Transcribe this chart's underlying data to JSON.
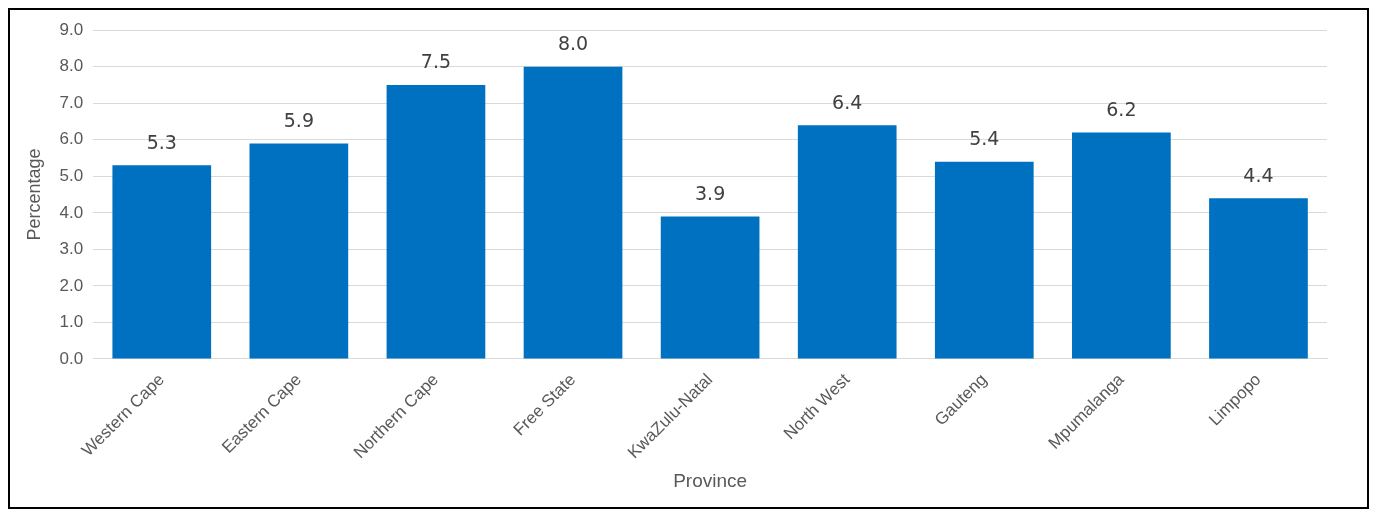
{
  "chart_data": {
    "type": "bar",
    "xlabel": "Province",
    "ylabel": "Percentage",
    "categories": [
      "Western Cape",
      "Eastern Cape",
      "Northern Cape",
      "Free State",
      "KwaZulu-Natal",
      "North West",
      "Gauteng",
      "Mpumalanga",
      "Limpopo"
    ],
    "values": [
      5.3,
      5.9,
      7.5,
      8.0,
      3.9,
      6.4,
      5.4,
      6.2,
      4.4
    ],
    "color": "#0070c0",
    "ylim": [
      0,
      9
    ],
    "yticks": [
      {
        "value": 0,
        "label": "0.0"
      },
      {
        "value": 1,
        "label": "1.0"
      },
      {
        "value": 2,
        "label": "2.0"
      },
      {
        "value": 3,
        "label": "3.0"
      },
      {
        "value": 4,
        "label": "4.0"
      },
      {
        "value": 5,
        "label": "5.0"
      },
      {
        "value": 6,
        "label": "6.0"
      },
      {
        "value": 7,
        "label": "7.0"
      },
      {
        "value": 8,
        "label": "8.0"
      },
      {
        "value": 9,
        "label": "9.0"
      }
    ],
    "value_labels": [
      "5.3",
      "5.9",
      "7.5",
      "8.0",
      "3.9",
      "6.4",
      "5.4",
      "6.2",
      "4.4"
    ],
    "grid": "y"
  }
}
